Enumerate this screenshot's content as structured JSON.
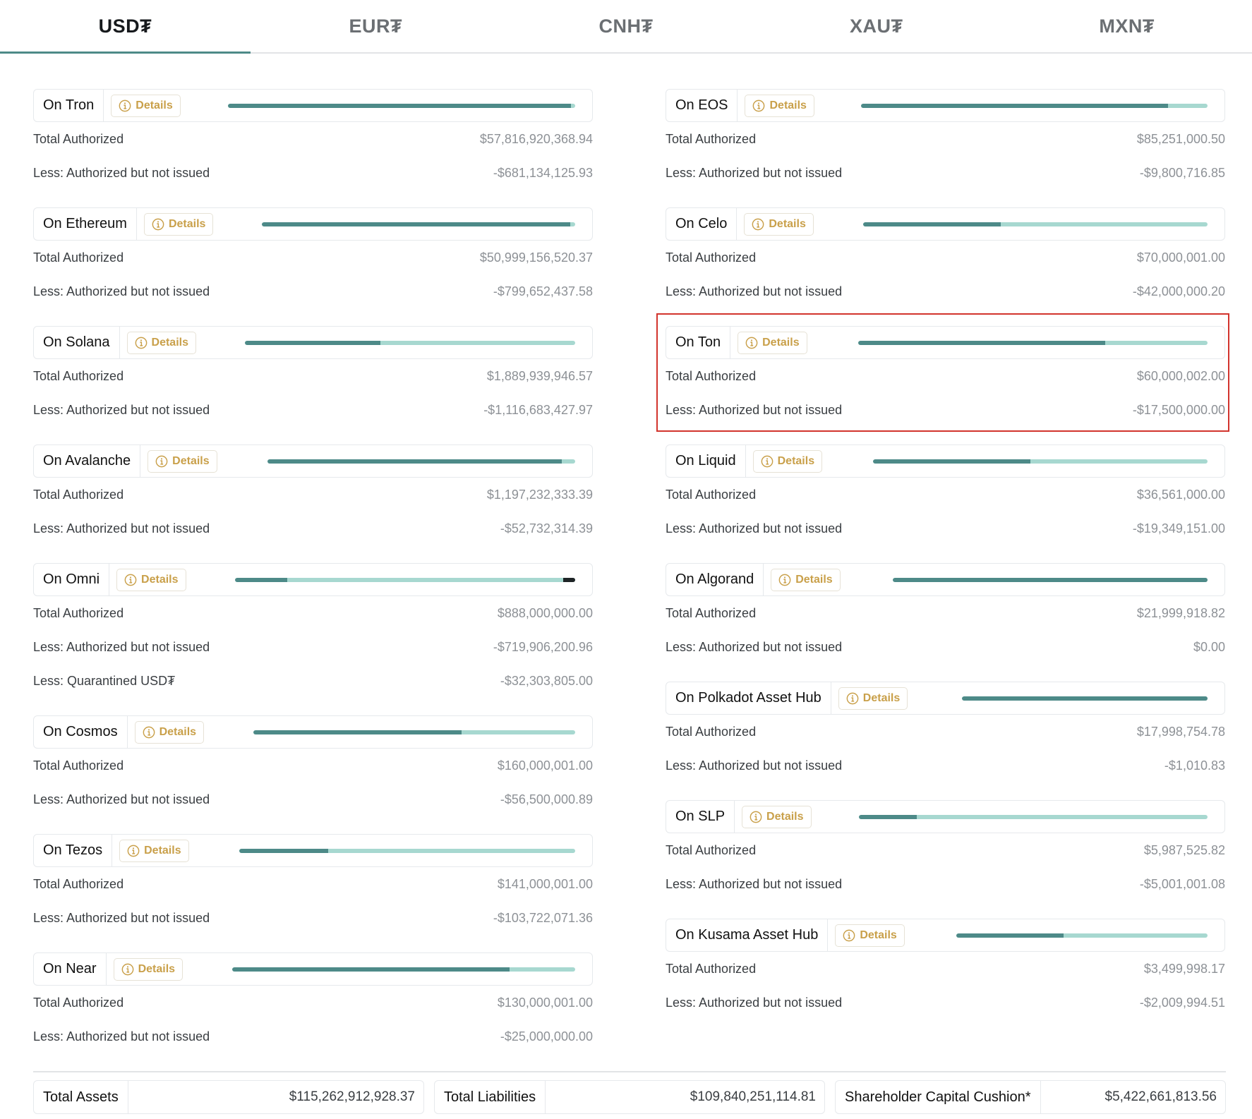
{
  "tabs": [
    {
      "label": "USD₮",
      "active": true
    },
    {
      "label": "EUR₮",
      "active": false
    },
    {
      "label": "CNH₮",
      "active": false
    },
    {
      "label": "XAU₮",
      "active": false
    },
    {
      "label": "MXN₮",
      "active": false
    }
  ],
  "details_label": "Details",
  "colors": {
    "accent": "#4d8a88",
    "bar_light": "#a7d8d0",
    "details_gold": "#c9a04a",
    "highlight_red": "#d2342d"
  },
  "left_chains": [
    {
      "name": "On Tron",
      "bar_width": 492,
      "issued_fraction": 0.988,
      "rows": [
        {
          "label": "Total Authorized",
          "value": "$57,816,920,368.94"
        },
        {
          "label": "Less: Authorized but not issued",
          "value": "-$681,134,125.93"
        }
      ]
    },
    {
      "name": "On Ethereum",
      "bar_width": 444,
      "issued_fraction": 0.984,
      "rows": [
        {
          "label": "Total Authorized",
          "value": "$50,999,156,520.37"
        },
        {
          "label": "Less: Authorized but not issued",
          "value": "-$799,652,437.58"
        }
      ]
    },
    {
      "name": "On Solana",
      "bar_width": 468,
      "issued_fraction": 0.41,
      "rows": [
        {
          "label": "Total Authorized",
          "value": "$1,889,939,946.57"
        },
        {
          "label": "Less: Authorized but not issued",
          "value": "-$1,116,683,427.97"
        }
      ]
    },
    {
      "name": "On Avalanche",
      "bar_width": 436,
      "issued_fraction": 0.956,
      "rows": [
        {
          "label": "Total Authorized",
          "value": "$1,197,232,333.39"
        },
        {
          "label": "Less: Authorized but not issued",
          "value": "-$52,732,314.39"
        }
      ]
    },
    {
      "name": "On Omni",
      "bar_width": 482,
      "issued_fraction": 0.154,
      "quarantined_fraction": 0.036,
      "rows": [
        {
          "label": "Total Authorized",
          "value": "$888,000,000.00"
        },
        {
          "label": "Less: Authorized but not issued",
          "value": "-$719,906,200.96"
        },
        {
          "label": "Less: Quarantined USD₮",
          "value": "-$32,303,805.00"
        }
      ]
    },
    {
      "name": "On Cosmos",
      "bar_width": 456,
      "issued_fraction": 0.647,
      "rows": [
        {
          "label": "Total Authorized",
          "value": "$160,000,001.00"
        },
        {
          "label": "Less: Authorized but not issued",
          "value": "-$56,500,000.89"
        }
      ]
    },
    {
      "name": "On Tezos",
      "bar_width": 476,
      "issued_fraction": 0.264,
      "rows": [
        {
          "label": "Total Authorized",
          "value": "$141,000,001.00"
        },
        {
          "label": "Less: Authorized but not issued",
          "value": "-$103,722,071.36"
        }
      ]
    },
    {
      "name": "On Near",
      "bar_width": 486,
      "issued_fraction": 0.808,
      "rows": [
        {
          "label": "Total Authorized",
          "value": "$130,000,001.00"
        },
        {
          "label": "Less: Authorized but not issued",
          "value": "-$25,000,000.00"
        }
      ]
    }
  ],
  "right_chains": [
    {
      "name": "On EOS",
      "bar_width": 491,
      "issued_fraction": 0.885,
      "rows": [
        {
          "label": "Total Authorized",
          "value": "$85,251,000.50"
        },
        {
          "label": "Less: Authorized but not issued",
          "value": "-$9,800,716.85"
        }
      ]
    },
    {
      "name": "On Celo",
      "bar_width": 488,
      "issued_fraction": 0.4,
      "rows": [
        {
          "label": "Total Authorized",
          "value": "$70,000,001.00"
        },
        {
          "label": "Less: Authorized but not issued",
          "value": "-$42,000,000.20"
        }
      ]
    },
    {
      "name": "On Ton",
      "bar_width": 495,
      "issued_fraction": 0.708,
      "rows": [
        {
          "label": "Total Authorized",
          "value": "$60,000,002.00"
        },
        {
          "label": "Less: Authorized but not issued",
          "value": "-$17,500,000.00"
        }
      ]
    },
    {
      "name": "On Liquid",
      "bar_width": 474,
      "issued_fraction": 0.471,
      "rows": [
        {
          "label": "Total Authorized",
          "value": "$36,561,000.00"
        },
        {
          "label": "Less: Authorized but not issued",
          "value": "-$19,349,151.00"
        }
      ]
    },
    {
      "name": "On Algorand",
      "bar_width": 446,
      "issued_fraction": 1.0,
      "rows": [
        {
          "label": "Total Authorized",
          "value": "$21,999,918.82"
        },
        {
          "label": "Less: Authorized but not issued",
          "value": "$0.00"
        }
      ]
    },
    {
      "name": "On Polkadot Asset Hub",
      "bar_width": 348,
      "issued_fraction": 1.0,
      "rows": [
        {
          "label": "Total Authorized",
          "value": "$17,998,754.78"
        },
        {
          "label": "Less: Authorized but not issued",
          "value": "-$1,010.83"
        }
      ]
    },
    {
      "name": "On SLP",
      "bar_width": 494,
      "issued_fraction": 0.165,
      "rows": [
        {
          "label": "Total Authorized",
          "value": "$5,987,525.82"
        },
        {
          "label": "Less: Authorized but not issued",
          "value": "-$5,001,001.08"
        }
      ]
    },
    {
      "name": "On Kusama Asset Hub",
      "bar_width": 356,
      "issued_fraction": 0.426,
      "rows": [
        {
          "label": "Total Authorized",
          "value": "$3,499,998.17"
        },
        {
          "label": "Less: Authorized but not issued",
          "value": "-$2,009,994.51"
        }
      ]
    }
  ],
  "totals": [
    {
      "label": "Total Assets",
      "value": "$115,262,912,928.37"
    },
    {
      "label": "Total Liabilities",
      "value": "$109,840,251,114.81"
    },
    {
      "label": "Shareholder Capital Cushion*",
      "value": "$5,422,661,813.56"
    }
  ]
}
